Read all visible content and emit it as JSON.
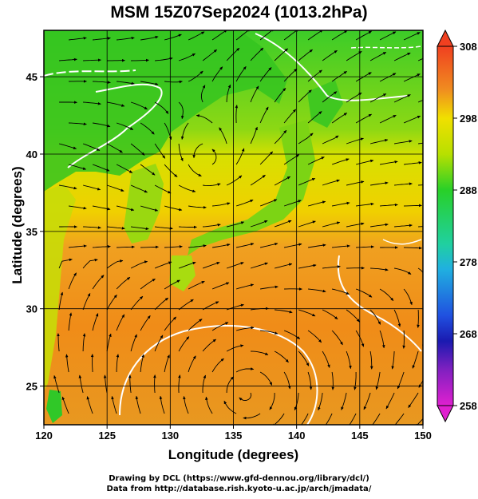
{
  "title": "MSM 15Z07Sep2024 (1013.2hPa)",
  "axes": {
    "xlabel": "Longitude (degrees)",
    "ylabel": "Latitude  (degrees)",
    "x_ticks": [
      "120",
      "125",
      "130",
      "135",
      "140",
      "145",
      "150"
    ],
    "y_ticks": [
      "25",
      "30",
      "35",
      "40",
      "45"
    ]
  },
  "colorbar": {
    "ticks": [
      "308",
      "298",
      "288",
      "278",
      "268",
      "258"
    ],
    "min": 258,
    "max": 308
  },
  "credits": {
    "line1": "Drawing by DCL (https://www.gfd-dennou.org/library/dcl/)",
    "line2": "Data from http://database.rish.kyoto-u.ac.jp/arch/jmadata/"
  },
  "chart_data": {
    "type": "heatmap",
    "title": "MSM 15Z07Sep2024 (1013.2hPa)",
    "xlabel": "Longitude (degrees)",
    "ylabel": "Latitude  (degrees)",
    "xlim": [
      120,
      150
    ],
    "ylim": [
      22.5,
      48
    ],
    "grid": true,
    "colorbar_range": [
      258,
      308
    ],
    "colors": {
      "bg_yellow": "#e8e000",
      "bg_orange": "#f08c18",
      "bg_green": "#3cdc20",
      "land": "#28c828",
      "contour": "#ffffff",
      "streamline": "#000000"
    },
    "cyclonic_centers": [
      {
        "lon": 133.0,
        "lat": 39.5
      },
      {
        "lon": 136.0,
        "lat": 24.5
      }
    ]
  }
}
